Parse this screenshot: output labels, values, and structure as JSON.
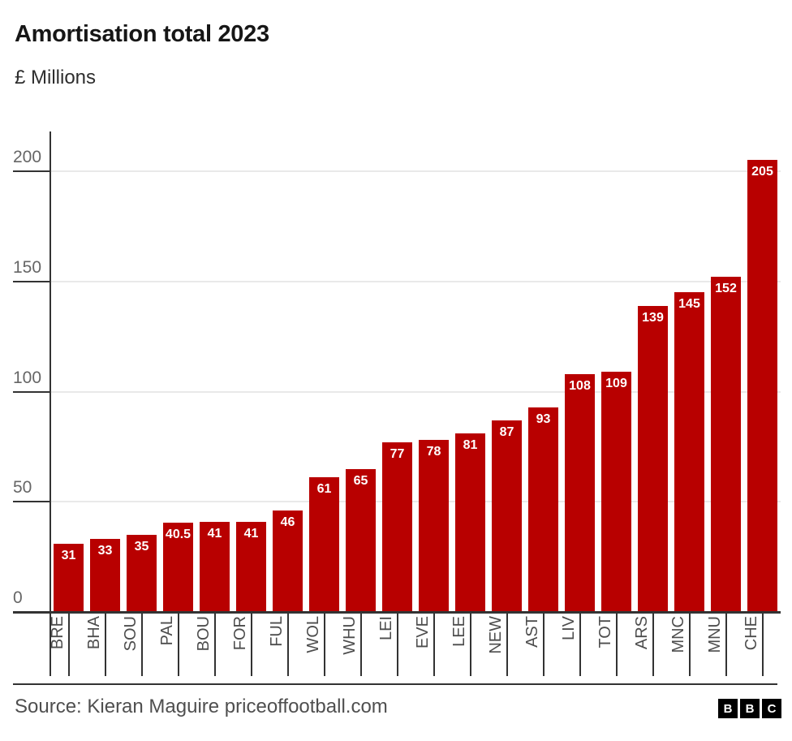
{
  "header": {
    "title": "Amortisation total 2023",
    "subtitle": "£ Millions"
  },
  "chart_data": {
    "type": "bar",
    "title": "Amortisation total 2023",
    "ylabel": "£ Millions",
    "xlabel": "",
    "categories": [
      "BRE",
      "BHA",
      "SOU",
      "PAL",
      "BOU",
      "FOR",
      "FUL",
      "WOL",
      "WHU",
      "LEI",
      "EVE",
      "LEE",
      "NEW",
      "AST",
      "LIV",
      "TOT",
      "ARS",
      "MNC",
      "MNU",
      "CHE"
    ],
    "values": [
      31,
      33,
      35,
      40.5,
      41,
      41,
      46,
      61,
      65,
      77,
      78,
      81,
      87,
      93,
      108,
      109,
      139,
      145,
      152,
      205
    ],
    "y_ticks": [
      0,
      50,
      100,
      150,
      200
    ],
    "ylim": [
      0,
      218
    ],
    "grid": "horizontal",
    "legend": "none",
    "bar_color": "#b80000",
    "value_label_color": "#ffffff",
    "axis_color": "#333333",
    "gridline_color": "#e9e9e9",
    "y_label_color": "#666666",
    "x_label_color": "#4d4d4d"
  },
  "footer": {
    "source": "Source: Kieran Maguire priceoffootball.com",
    "logo_letters": [
      "B",
      "B",
      "C"
    ]
  }
}
